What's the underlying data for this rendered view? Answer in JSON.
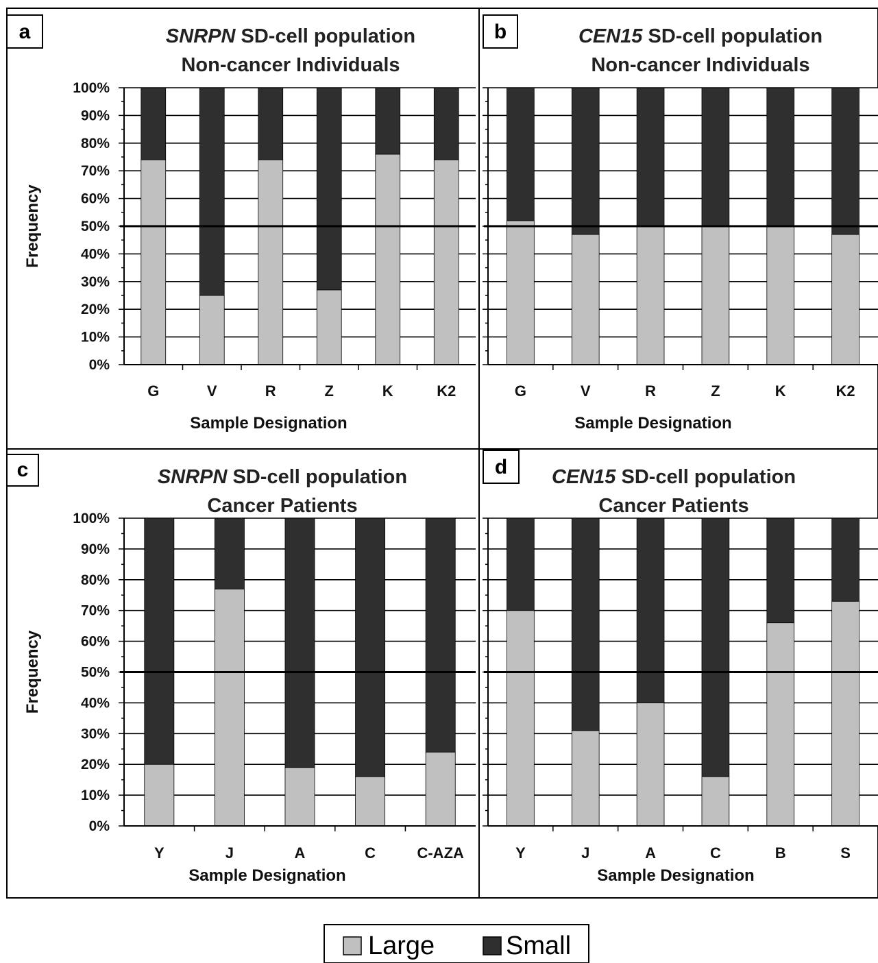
{
  "colors": {
    "large": "#c0c0c0",
    "small": "#2f2f2f",
    "grid": "#000000",
    "background": "#ffffff"
  },
  "legend": {
    "items": [
      {
        "label": "Large",
        "color": "#c0c0c0"
      },
      {
        "label": "Small",
        "color": "#2f2f2f"
      }
    ]
  },
  "chart_data": [
    {
      "panel": "a",
      "type": "bar",
      "stacked": true,
      "title_italic": "SNRPN",
      "title_rest": " SD-cell population",
      "subtitle": "Non-cancer Individuals",
      "xlabel": "Sample Designation",
      "ylabel": "Frequency",
      "ylim": [
        0,
        100
      ],
      "yticks": [
        "0%",
        "10%",
        "20%",
        "30%",
        "40%",
        "50%",
        "60%",
        "70%",
        "80%",
        "90%",
        "100%"
      ],
      "categories": [
        "G",
        "V",
        "R",
        "Z",
        "K",
        "K2"
      ],
      "series": [
        {
          "name": "Large",
          "values": [
            74,
            25,
            74,
            27,
            76,
            74
          ]
        },
        {
          "name": "Small",
          "values": [
            26,
            75,
            26,
            73,
            24,
            26
          ]
        }
      ],
      "reference_line": 50,
      "grid": true
    },
    {
      "panel": "b",
      "type": "bar",
      "stacked": true,
      "title_italic": "CEN15",
      "title_rest": " SD-cell population",
      "subtitle": "Non-cancer Individuals",
      "xlabel": "Sample Designation",
      "ylabel": "",
      "ylim": [
        0,
        100
      ],
      "yticks": [],
      "categories": [
        "G",
        "V",
        "R",
        "Z",
        "K",
        "K2"
      ],
      "series": [
        {
          "name": "Large",
          "values": [
            52,
            47,
            50,
            50,
            50,
            47
          ]
        },
        {
          "name": "Small",
          "values": [
            48,
            53,
            50,
            50,
            50,
            53
          ]
        }
      ],
      "reference_line": 50,
      "grid": true
    },
    {
      "panel": "c",
      "type": "bar",
      "stacked": true,
      "title_italic": "SNRPN",
      "title_rest": " SD-cell population",
      "subtitle": "Cancer Patients",
      "xlabel": "Sample Designation",
      "ylabel": "Frequency",
      "ylim": [
        0,
        100
      ],
      "yticks": [
        "0%",
        "10%",
        "20%",
        "30%",
        "40%",
        "50%",
        "60%",
        "70%",
        "80%",
        "90%",
        "100%"
      ],
      "categories": [
        "Y",
        "J",
        "A",
        "C",
        "C-AZA"
      ],
      "series": [
        {
          "name": "Large",
          "values": [
            20,
            77,
            19,
            16,
            24
          ]
        },
        {
          "name": "Small",
          "values": [
            80,
            23,
            81,
            84,
            76
          ]
        }
      ],
      "reference_line": 50,
      "grid": true
    },
    {
      "panel": "d",
      "type": "bar",
      "stacked": true,
      "title_italic": "CEN15",
      "title_rest": " SD-cell population",
      "subtitle": "Cancer Patients",
      "xlabel": "Sample Designation",
      "ylabel": "",
      "ylim": [
        0,
        100
      ],
      "yticks": [],
      "categories": [
        "Y",
        "J",
        "A",
        "C",
        "B",
        "S"
      ],
      "series": [
        {
          "name": "Large",
          "values": [
            70,
            31,
            40,
            16,
            66,
            73
          ]
        },
        {
          "name": "Small",
          "values": [
            30,
            69,
            60,
            84,
            34,
            27
          ]
        }
      ],
      "reference_line": 50,
      "grid": true
    }
  ]
}
